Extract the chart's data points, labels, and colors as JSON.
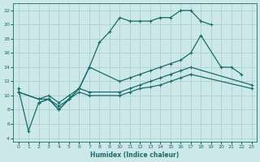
{
  "xlabel": "Humidex (Indice chaleur)",
  "background_color": "#cce8e8",
  "grid_color": "#b0d4d4",
  "line_color": "#1a6b6b",
  "xlim": [
    -0.5,
    23.5
  ],
  "ylim": [
    3.5,
    23
  ],
  "xticks": [
    0,
    1,
    2,
    3,
    4,
    5,
    6,
    7,
    8,
    9,
    10,
    11,
    12,
    13,
    14,
    15,
    16,
    17,
    18,
    19,
    20,
    21,
    22,
    23
  ],
  "yticks": [
    4,
    6,
    8,
    10,
    12,
    14,
    16,
    18,
    20,
    22
  ],
  "lines": [
    {
      "x": [
        0,
        1,
        2,
        3,
        4,
        5,
        6,
        7,
        8,
        9,
        10,
        11,
        12,
        13,
        14,
        15,
        16,
        17,
        18,
        19
      ],
      "y": [
        11,
        5,
        9,
        9.5,
        8,
        9.5,
        11,
        14,
        17.5,
        19,
        21,
        20.5,
        20.5,
        20.5,
        21,
        21,
        22,
        22,
        20.5,
        20
      ]
    },
    {
      "x": [
        2,
        3,
        4,
        5,
        6,
        7,
        10,
        11,
        12,
        13,
        14,
        15,
        16,
        17,
        18,
        20,
        21,
        22
      ],
      "y": [
        9,
        9.5,
        8,
        9.5,
        11,
        14,
        12,
        12.5,
        13,
        13.5,
        14,
        14.5,
        15,
        16,
        18.5,
        14,
        14,
        13
      ]
    },
    {
      "x": [
        0,
        2,
        3,
        4,
        5,
        6,
        7,
        10,
        11,
        12,
        13,
        14,
        15,
        16,
        17,
        23
      ],
      "y": [
        10.5,
        9.5,
        10,
        9,
        10,
        11,
        10.5,
        10.5,
        11,
        11.5,
        12,
        12.5,
        13,
        13.5,
        14,
        11.5
      ]
    },
    {
      "x": [
        0,
        2,
        3,
        4,
        5,
        6,
        7,
        10,
        11,
        12,
        13,
        14,
        15,
        16,
        17,
        23
      ],
      "y": [
        10.5,
        9.5,
        9.5,
        8.5,
        9.5,
        10.5,
        10,
        10,
        10.5,
        11,
        11.2,
        11.5,
        12,
        12.5,
        13,
        11
      ]
    }
  ]
}
